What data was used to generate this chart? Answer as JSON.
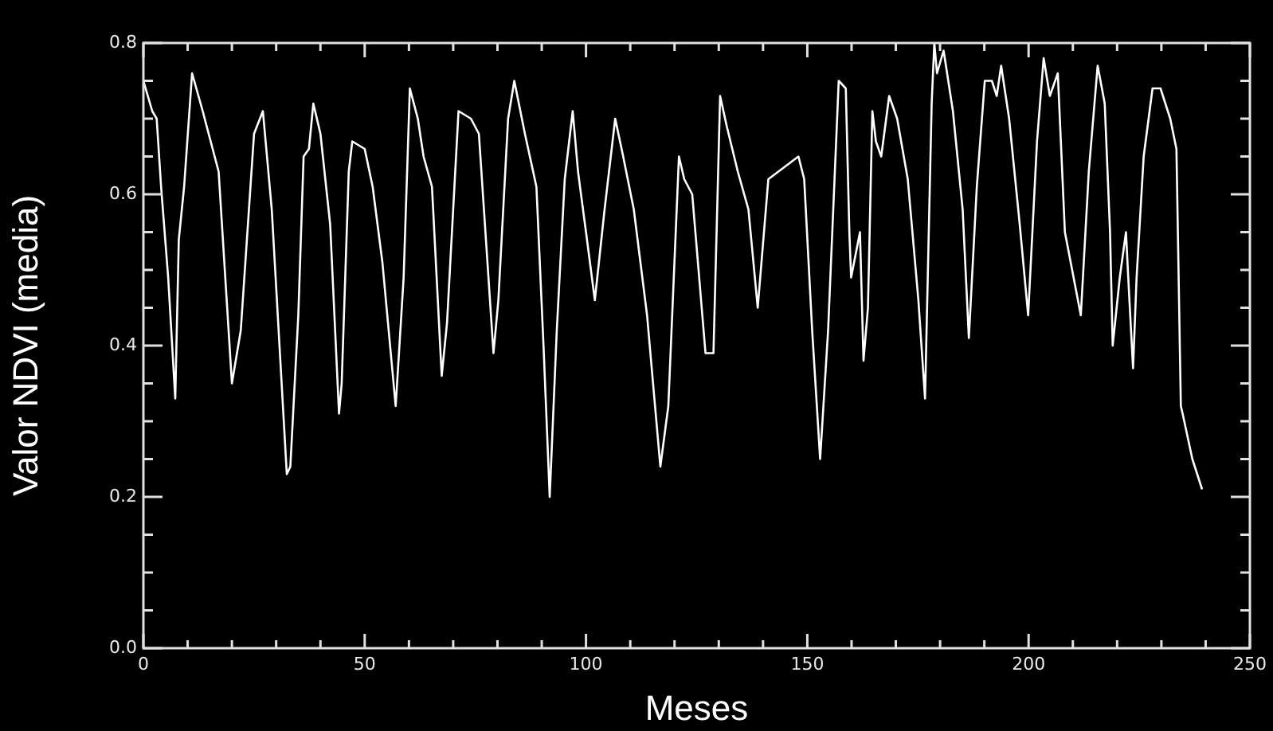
{
  "chart_data": {
    "type": "line",
    "xlabel": "Meses",
    "ylabel": "Valor NDVI (media)",
    "color": "#ffffff",
    "grid": false,
    "legend": false,
    "marker": "none",
    "line_style": "solid",
    "xlim": [
      0,
      250
    ],
    "ylim": [
      0,
      0.8
    ],
    "xticks": [
      0,
      {
        "value": 10,
        "label": null
      },
      {
        "value": 20,
        "label": null
      },
      {
        "value": 30,
        "label": null
      },
      {
        "value": 40,
        "label": null
      },
      50,
      {
        "value": 60,
        "label": null
      },
      {
        "value": 70,
        "label": null
      },
      {
        "value": 80,
        "label": null
      },
      {
        "value": 90,
        "label": null
      },
      100,
      {
        "value": 110,
        "label": null
      },
      {
        "value": 120,
        "label": null
      },
      {
        "value": 130,
        "label": null
      },
      {
        "value": 140,
        "label": null
      },
      150,
      {
        "value": 160,
        "label": null
      },
      {
        "value": 170,
        "label": null
      },
      {
        "value": 180,
        "label": null
      },
      {
        "value": 190,
        "label": null
      },
      200,
      {
        "value": 210,
        "label": null
      },
      {
        "value": 220,
        "label": null
      },
      {
        "value": 230,
        "label": null
      },
      {
        "value": 240,
        "label": null
      },
      250
    ],
    "yticks": [
      {
        "value": 0,
        "label": "0.0"
      },
      {
        "value": 0.05,
        "label": null
      },
      {
        "value": 0.1,
        "label": null
      },
      {
        "value": 0.15,
        "label": null
      },
      {
        "value": 0.2,
        "label": "0.2"
      },
      {
        "value": 0.25,
        "label": null
      },
      {
        "value": 0.3,
        "label": null
      },
      {
        "value": 0.35,
        "label": null
      },
      {
        "value": 0.4,
        "label": "0.4"
      },
      {
        "value": 0.45,
        "label": null
      },
      {
        "value": 0.5,
        "label": null
      },
      {
        "value": 0.55,
        "label": null
      },
      {
        "value": 0.6,
        "label": "0.6"
      },
      {
        "value": 0.65,
        "label": null
      },
      {
        "value": 0.7,
        "label": null
      },
      {
        "value": 0.75,
        "label": null
      },
      {
        "value": 0.8,
        "label": "0.8"
      }
    ],
    "x": [
      0,
      2,
      3,
      4,
      5.6,
      7.2,
      8,
      9.2,
      11,
      13.4,
      17,
      20,
      22,
      25,
      27,
      29,
      32.4,
      33.2,
      35,
      36.2,
      37.4,
      38.4,
      40,
      42.2,
      44.2,
      44.8,
      46.4,
      47.2,
      50,
      51.8,
      54,
      57,
      58.8,
      60.2,
      62,
      63.3,
      65.2,
      67.4,
      68.6,
      71.2,
      74,
      75.8,
      79.1,
      80.2,
      82.4,
      83.8,
      86.2,
      88.8,
      90.4,
      91.8,
      93.4,
      95.2,
      97,
      98.2,
      100,
      102,
      104.2,
      106.6,
      108.4,
      110.8,
      113.8,
      116.8,
      118.6,
      121,
      122.2,
      124,
      127,
      128.8,
      130.3,
      131.8,
      134.3,
      136.7,
      138.8,
      141.2,
      148,
      149.3,
      151.1,
      152.9,
      154.7,
      157.1,
      158.7,
      159.5,
      159.9,
      161.9,
      162.7,
      163.7,
      164.7,
      165.5,
      166.7,
      168.5,
      170.3,
      172.7,
      175.1,
      176.6,
      178.1,
      178.7,
      179.3,
      180.8,
      182.9,
      185.1,
      186.5,
      188.3,
      190.1,
      191.7,
      192.8,
      193.8,
      195.6,
      198,
      199.9,
      201.9,
      203.4,
      204.8,
      206.6,
      208.2,
      211.8,
      213.6,
      215.6,
      217.2,
      218.4,
      219,
      220.6,
      222,
      222.6,
      223.6,
      224.4,
      226,
      228,
      229.8,
      232,
      233.4,
      234.4,
      234.8,
      237,
      239.2
    ],
    "values": [
      0.75,
      0.71,
      0.7,
      0.61,
      0.49,
      0.33,
      0.54,
      0.61,
      0.76,
      0.71,
      0.63,
      0.35,
      0.42,
      0.68,
      0.71,
      0.58,
      0.23,
      0.24,
      0.44,
      0.65,
      0.66,
      0.72,
      0.68,
      0.56,
      0.31,
      0.35,
      0.63,
      0.67,
      0.66,
      0.61,
      0.51,
      0.32,
      0.49,
      0.74,
      0.7,
      0.65,
      0.61,
      0.36,
      0.43,
      0.71,
      0.7,
      0.68,
      0.39,
      0.46,
      0.7,
      0.75,
      0.68,
      0.61,
      0.4,
      0.2,
      0.42,
      0.62,
      0.71,
      0.63,
      0.55,
      0.46,
      0.58,
      0.7,
      0.65,
      0.58,
      0.44,
      0.24,
      0.32,
      0.65,
      0.62,
      0.6,
      0.39,
      0.39,
      0.73,
      0.69,
      0.63,
      0.58,
      0.45,
      0.62,
      0.65,
      0.62,
      0.42,
      0.25,
      0.42,
      0.75,
      0.74,
      0.55,
      0.49,
      0.55,
      0.38,
      0.45,
      0.71,
      0.67,
      0.65,
      0.73,
      0.7,
      0.62,
      0.46,
      0.33,
      0.72,
      0.8,
      0.76,
      0.79,
      0.71,
      0.58,
      0.41,
      0.61,
      0.75,
      0.75,
      0.73,
      0.77,
      0.7,
      0.56,
      0.44,
      0.67,
      0.78,
      0.73,
      0.76,
      0.55,
      0.44,
      0.63,
      0.77,
      0.72,
      0.55,
      0.4,
      0.49,
      0.55,
      0.48,
      0.37,
      0.49,
      0.65,
      0.74,
      0.74,
      0.7,
      0.66,
      0.32,
      0.31,
      0.25,
      0.21
    ]
  }
}
